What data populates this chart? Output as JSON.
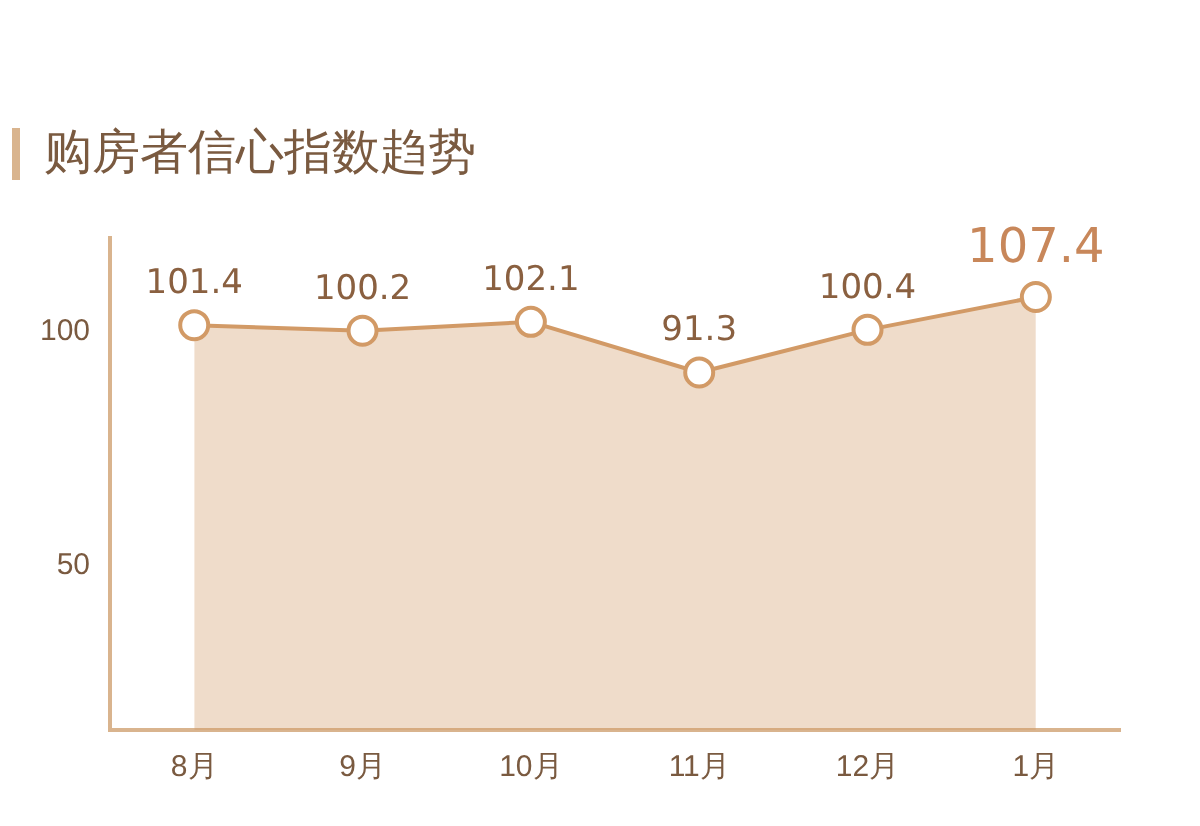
{
  "chart_data": {
    "type": "area",
    "title": "购房者信心指数趋势",
    "categories": [
      "8月",
      "9月",
      "10月",
      "11月",
      "12月",
      "1月"
    ],
    "series": [
      {
        "color": "#d29a66",
        "values": [
          101.4,
          100.2,
          102.1,
          91.3,
          100.4,
          107.4
        ]
      }
    ],
    "ylim": [
      15,
      120
    ],
    "yticks": [
      50,
      100
    ],
    "grid": false,
    "legend": false,
    "marker": "circle",
    "line_style": "solid",
    "data_labels": true
  }
}
